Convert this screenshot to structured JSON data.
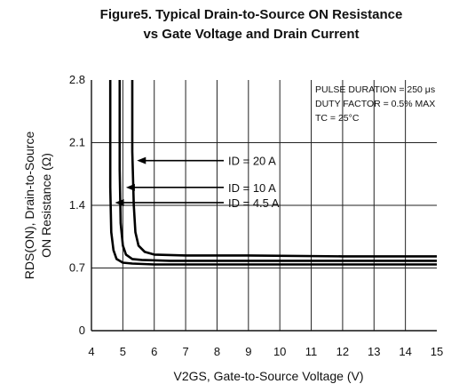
{
  "chart_data": {
    "type": "line",
    "title": "Figure5. Typical Drain-to-Source ON Resistance",
    "subtitle": "vs Gate Voltage and Drain Current",
    "xlabel": "V2GS, Gate-to-Source Voltage (V)",
    "ylabel_line1": "RDS(ON), Drain-to-Source",
    "ylabel_line2": "ON Resistance (Ω)",
    "xlim": [
      4,
      15
    ],
    "ylim": [
      0,
      2.8
    ],
    "x_ticks": [
      4,
      5,
      6,
      7,
      8,
      9,
      10,
      11,
      12,
      13,
      14,
      15
    ],
    "y_ticks": [
      0,
      0.7,
      1.4,
      2.1,
      2.8
    ],
    "grid": true,
    "conditions": [
      "PULSE DURATION = 250 μs",
      "DUTY FACTOR = 0.5% MAX",
      "TC = 25°C"
    ],
    "series": [
      {
        "name": "ID = 20 A",
        "x": [
          5.3,
          5.3,
          5.35,
          5.4,
          5.5,
          5.7,
          6.0,
          7.0,
          9.0,
          12.0,
          15.0
        ],
        "y": [
          2.8,
          2.0,
          1.4,
          1.1,
          0.95,
          0.88,
          0.85,
          0.84,
          0.84,
          0.83,
          0.83
        ]
      },
      {
        "name": "ID = 10 A",
        "x": [
          4.9,
          4.9,
          4.93,
          5.0,
          5.1,
          5.3,
          5.6,
          6.5,
          9.0,
          12.0,
          15.0
        ],
        "y": [
          2.8,
          1.8,
          1.2,
          0.95,
          0.85,
          0.8,
          0.79,
          0.78,
          0.78,
          0.78,
          0.78
        ]
      },
      {
        "name": "ID = 4.5 A",
        "x": [
          4.6,
          4.6,
          4.63,
          4.7,
          4.8,
          5.0,
          5.3,
          6.0,
          8.0,
          12.0,
          15.0
        ],
        "y": [
          2.8,
          1.6,
          1.1,
          0.9,
          0.8,
          0.76,
          0.75,
          0.74,
          0.74,
          0.74,
          0.74
        ]
      }
    ]
  }
}
